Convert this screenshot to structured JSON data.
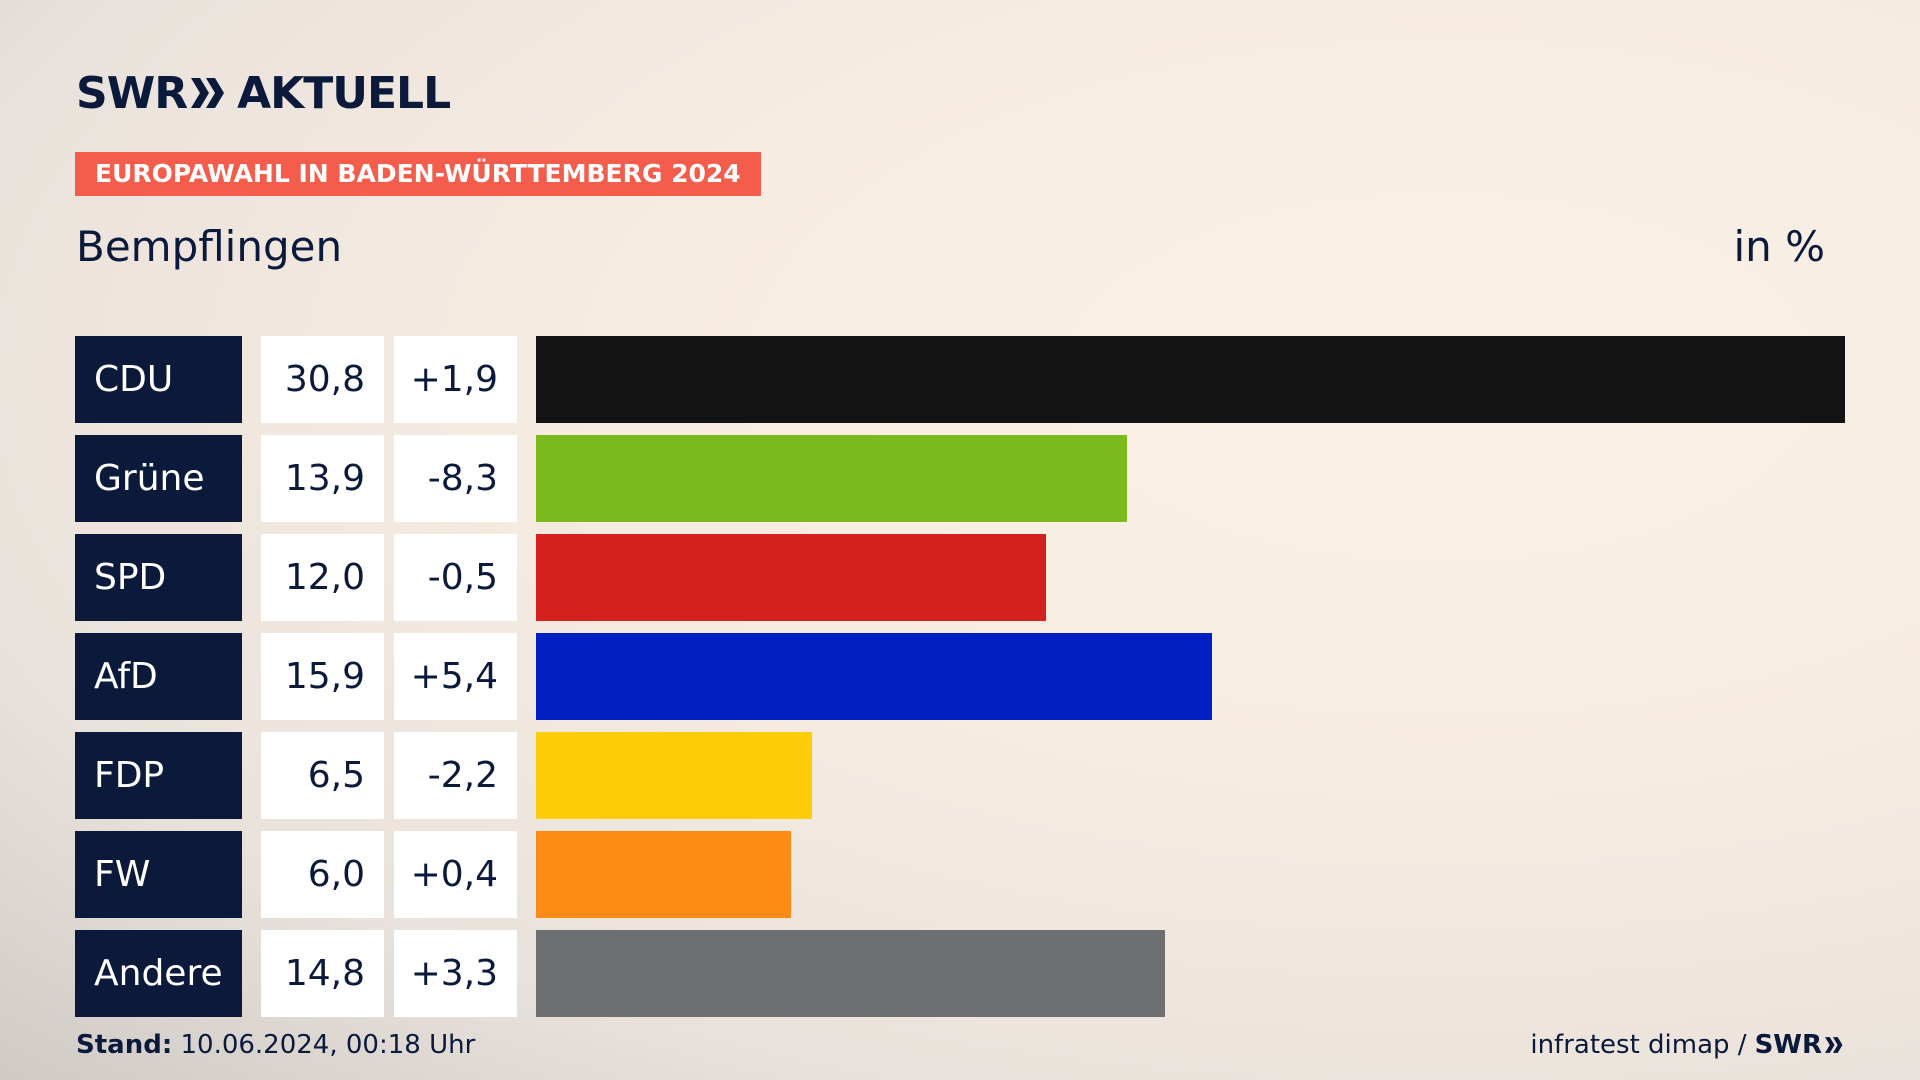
{
  "header": {
    "logo_text_left": "SWR",
    "logo_text_right": "AKTUELL",
    "banner": "EUROPAWAHL IN BADEN-WÜRTTEMBERG 2024",
    "subtitle": "Bempflingen",
    "unit": "in %"
  },
  "colors": {
    "navy": "#0b1a3b",
    "banner": "#f45c4b"
  },
  "chart_data": {
    "type": "bar",
    "orientation": "horizontal",
    "title": "Bempflingen",
    "unit": "in %",
    "categories": [
      "CDU",
      "Grüne",
      "SPD",
      "AfD",
      "FDP",
      "FW",
      "Andere"
    ],
    "values": [
      30.8,
      13.9,
      12.0,
      15.9,
      6.5,
      6.0,
      14.8
    ],
    "value_labels": [
      "30,8",
      "13,9",
      "12,0",
      "15,9",
      "6,5",
      "6,0",
      "14,8"
    ],
    "diff_labels": [
      "+1,9",
      "-8,3",
      "-0,5",
      "+5,4",
      "-2,2",
      "+0,4",
      "+3,3"
    ],
    "diffs": [
      1.9,
      -8.3,
      -0.5,
      5.4,
      -2.2,
      0.4,
      3.3
    ],
    "bar_colors": [
      "#131313",
      "#7aba1f",
      "#d4201f",
      "#0020c4",
      "#ffcc0a",
      "#fd8c17",
      "#6e6f71"
    ],
    "xlim": [
      0,
      30.8
    ],
    "grid": false,
    "legend": "none"
  },
  "footer": {
    "stand_label": "Stand:",
    "stand_value": "10.06.2024, 00:18 Uhr",
    "source": "infratest dimap /",
    "source_logo": "SWR"
  }
}
